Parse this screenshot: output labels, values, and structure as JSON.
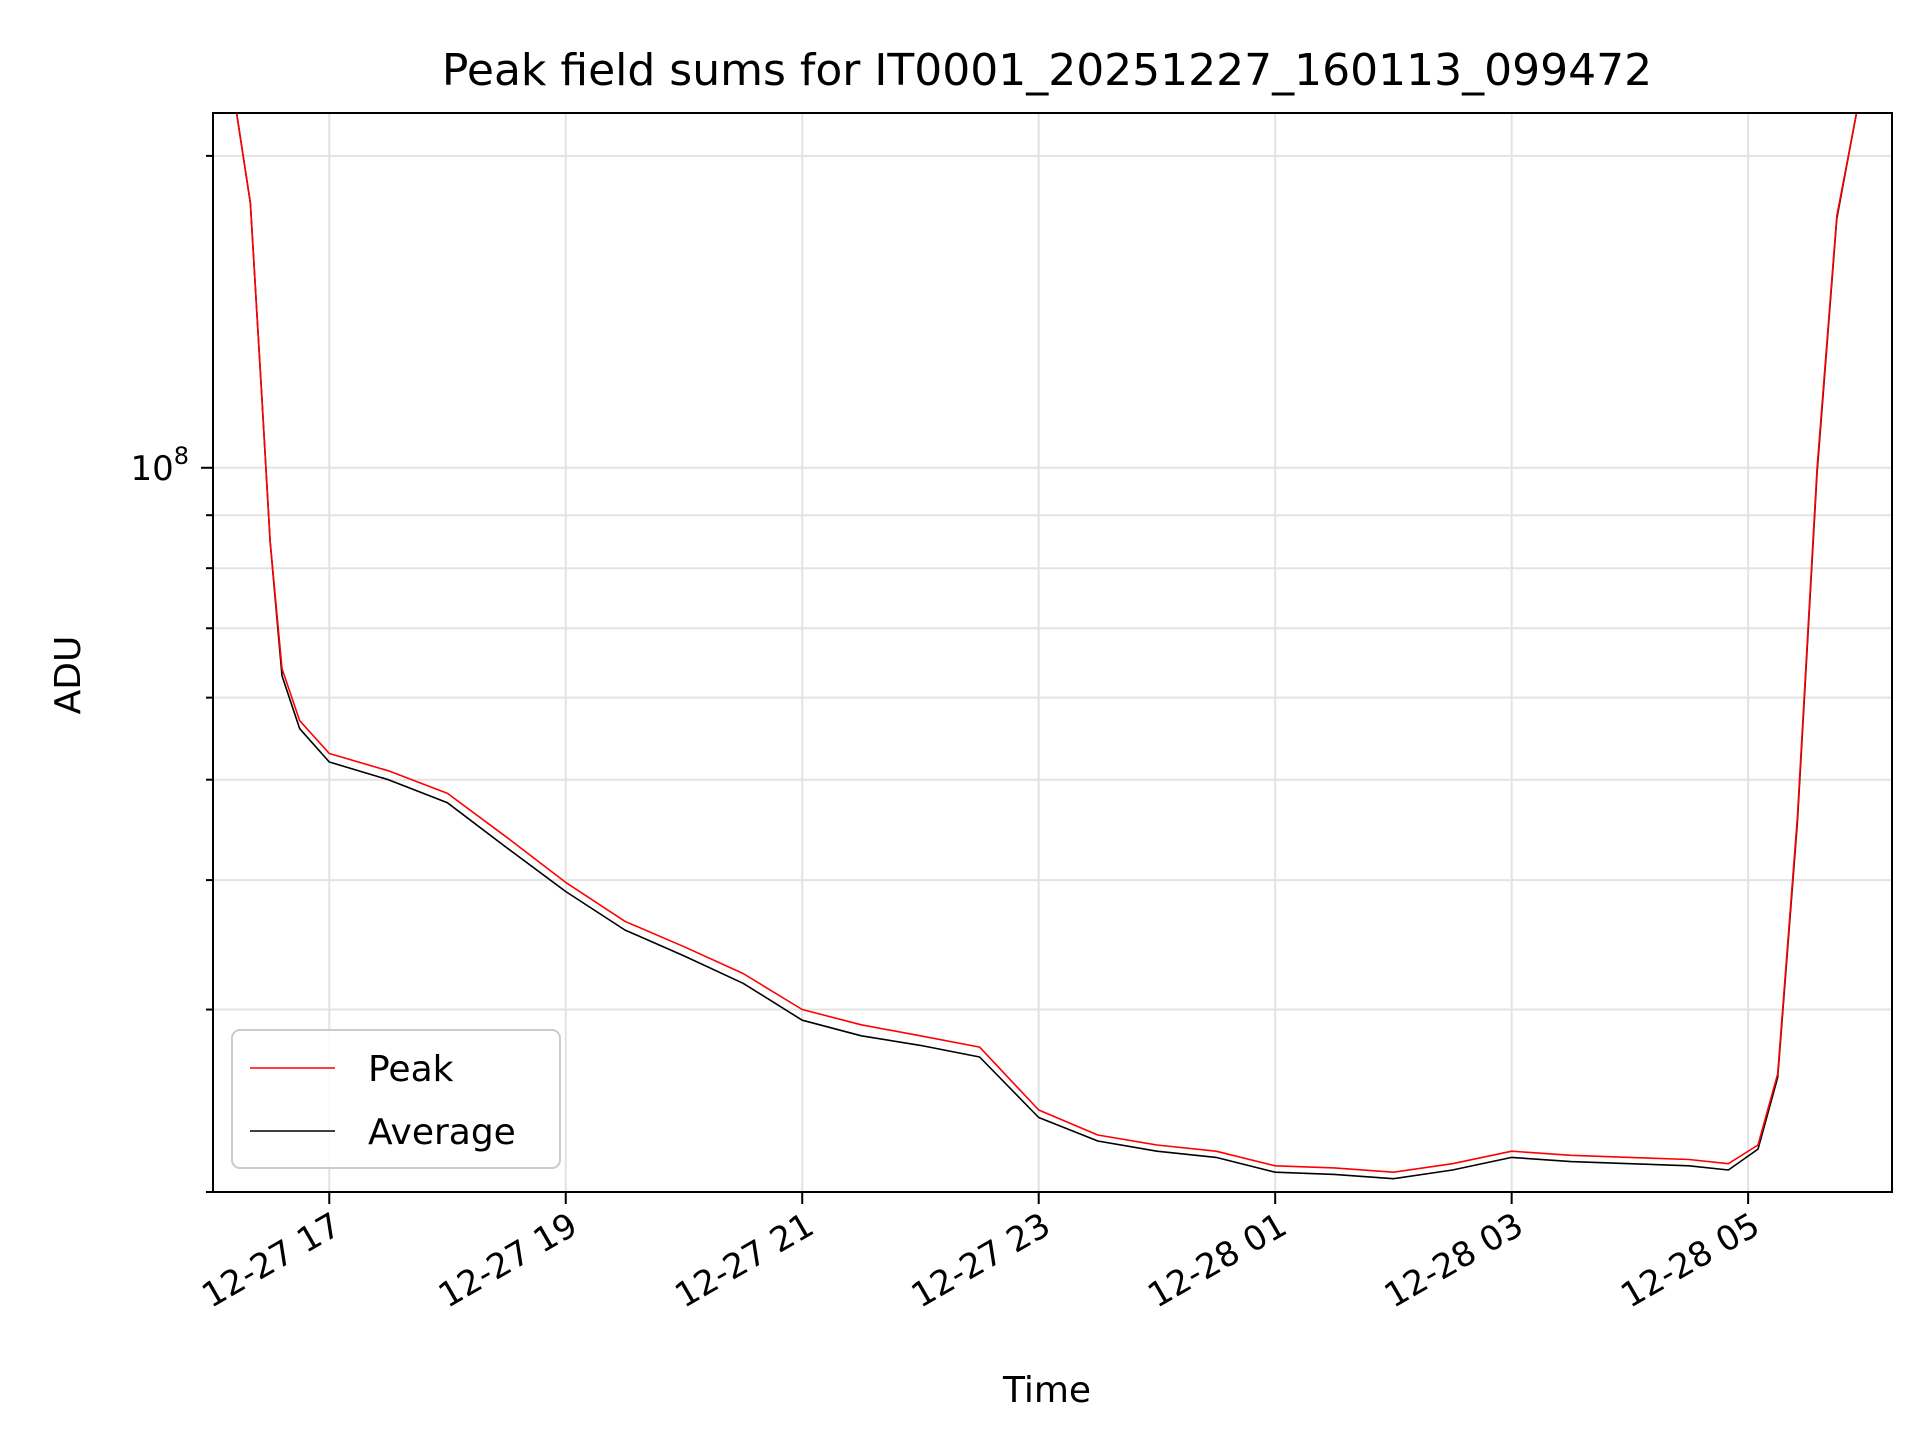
{
  "chart_data": {
    "type": "line",
    "title": "Peak field sums for IT0001_20251227_160113_099472",
    "xlabel": "Time",
    "ylabel": "ADU",
    "yscale": "log",
    "grid": true,
    "legend_placement": "lower-left",
    "xlim": [
      "2025-12-27 16:01",
      "2025-12-28 06:13"
    ],
    "ylim": [
      20000000,
      220000000
    ],
    "x_tick_labels": [
      "12-27 17",
      "12-27 19",
      "12-27 21",
      "12-27 23",
      "12-28 01",
      "12-28 03",
      "12-28 05"
    ],
    "x_ticks": [
      "2025-12-27 17:00",
      "2025-12-27 19:00",
      "2025-12-27 21:00",
      "2025-12-27 23:00",
      "2025-12-28 01:00",
      "2025-12-28 03:00",
      "2025-12-28 05:00"
    ],
    "y_major_tick": {
      "value": 100000000,
      "base": "10",
      "exp": "8"
    },
    "series": [
      {
        "name": "Peak",
        "color": "#ff0000",
        "x": [
          "2025-12-27 16:13",
          "2025-12-27 16:20",
          "2025-12-27 16:26",
          "2025-12-27 16:30",
          "2025-12-27 16:36",
          "2025-12-27 16:45",
          "2025-12-27 17:00",
          "2025-12-27 17:30",
          "2025-12-27 18:00",
          "2025-12-27 18:30",
          "2025-12-27 19:00",
          "2025-12-27 19:30",
          "2025-12-27 20:00",
          "2025-12-27 20:30",
          "2025-12-27 21:00",
          "2025-12-27 21:30",
          "2025-12-27 22:00",
          "2025-12-27 22:30",
          "2025-12-27 23:00",
          "2025-12-27 23:30",
          "2025-12-28 00:00",
          "2025-12-28 00:30",
          "2025-12-28 01:00",
          "2025-12-28 01:30",
          "2025-12-28 02:00",
          "2025-12-28 02:30",
          "2025-12-28 03:00",
          "2025-12-28 03:30",
          "2025-12-28 04:00",
          "2025-12-28 04:30",
          "2025-12-28 04:50",
          "2025-12-28 05:05",
          "2025-12-28 05:15",
          "2025-12-28 05:25",
          "2025-12-28 05:35",
          "2025-12-28 05:45",
          "2025-12-28 05:55"
        ],
        "values": [
          220000000,
          180000000,
          115000000,
          85000000,
          64000000,
          57000000,
          53000000,
          51000000,
          48500000,
          44000000,
          39800000,
          36500000,
          34500000,
          32500000,
          30000000,
          29000000,
          28300000,
          27600000,
          24000000,
          22700000,
          22200000,
          21900000,
          21200000,
          21100000,
          20900000,
          21300000,
          21900000,
          21700000,
          21600000,
          21500000,
          21300000,
          22200000,
          26000000,
          46000000,
          100000000,
          175000000,
          220000000
        ]
      },
      {
        "name": "Average",
        "color": "#000000",
        "x": [
          "2025-12-27 16:13",
          "2025-12-27 16:20",
          "2025-12-27 16:26",
          "2025-12-27 16:30",
          "2025-12-27 16:36",
          "2025-12-27 16:45",
          "2025-12-27 17:00",
          "2025-12-27 17:30",
          "2025-12-27 18:00",
          "2025-12-27 18:30",
          "2025-12-27 19:00",
          "2025-12-27 19:30",
          "2025-12-27 20:00",
          "2025-12-27 20:30",
          "2025-12-27 21:00",
          "2025-12-27 21:30",
          "2025-12-27 22:00",
          "2025-12-27 22:30",
          "2025-12-27 23:00",
          "2025-12-27 23:30",
          "2025-12-28 00:00",
          "2025-12-28 00:30",
          "2025-12-28 01:00",
          "2025-12-28 01:30",
          "2025-12-28 02:00",
          "2025-12-28 02:30",
          "2025-12-28 03:00",
          "2025-12-28 03:30",
          "2025-12-28 04:00",
          "2025-12-28 04:30",
          "2025-12-28 04:50",
          "2025-12-28 05:05",
          "2025-12-28 05:15",
          "2025-12-28 05:25",
          "2025-12-28 05:35",
          "2025-12-28 05:45",
          "2025-12-28 05:55"
        ],
        "values": [
          220000000,
          180000000,
          115000000,
          85000000,
          63000000,
          56000000,
          52000000,
          50000000,
          47500000,
          43000000,
          39000000,
          35800000,
          33800000,
          31800000,
          29300000,
          28300000,
          27700000,
          27000000,
          23600000,
          22400000,
          21900000,
          21600000,
          20900000,
          20800000,
          20600000,
          21000000,
          21600000,
          21400000,
          21300000,
          21200000,
          21000000,
          22000000,
          25800000,
          45500000,
          99000000,
          174000000,
          220000000
        ]
      }
    ],
    "annotations": []
  }
}
